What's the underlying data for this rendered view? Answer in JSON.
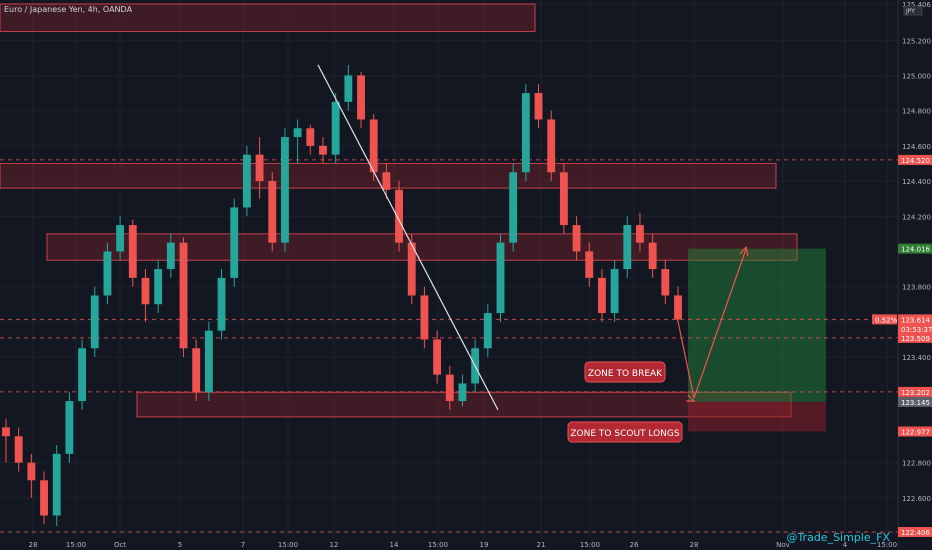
{
  "header": {
    "title": "Euro / Japanese Yen, 4h, OANDA"
  },
  "currency_badge": "JPY",
  "watermark": "@Trade_Simple_FX",
  "colors": {
    "background": "#131722",
    "grid": "#1e222d",
    "bull": "#26a69a",
    "bear": "#ef5350",
    "zone_fill": "rgba(178,40,51,0.28)",
    "zone_border": "#c8404a",
    "long_target": "rgba(38,140,60,0.45)",
    "long_stop": "rgba(150,30,40,0.5)",
    "text": "#b2b5be"
  },
  "chart_data": {
    "type": "candlestick",
    "symbol": "Euro / Japanese Yen",
    "timeframe": "4h",
    "source": "OANDA",
    "ylim": [
      122.406,
      125.406
    ],
    "y_ticks": [
      125.406,
      125.2,
      125.0,
      124.8,
      124.6,
      124.4,
      124.2,
      123.8,
      123.6,
      123.4,
      122.8,
      122.6,
      122.406
    ],
    "x_tick_labels": [
      "28",
      "15:00",
      "Oct",
      "5",
      "7",
      "15:00",
      "12",
      "14",
      "15:00",
      "19",
      "21",
      "15:00",
      "26",
      "28",
      "Nov",
      "4",
      "15:00"
    ],
    "price_labels": [
      {
        "text": "124.520",
        "value": 124.52,
        "color": "#ef5350",
        "line": "dashed"
      },
      {
        "text": "124.016",
        "value": 124.016,
        "color": "#2e7d32",
        "line": "none"
      },
      {
        "text": "123.614",
        "value": 123.614,
        "color": "#ef5350",
        "line": "dashed",
        "extra": "0.52%"
      },
      {
        "text": "03:53:37",
        "value": 123.56,
        "color": "#ef5350",
        "line": "none"
      },
      {
        "text": "123.509",
        "value": 123.509,
        "color": "#ef5350",
        "line": "dashed"
      },
      {
        "text": "123.202",
        "value": 123.202,
        "color": "#ef5350",
        "line": "dashed"
      },
      {
        "text": "123.145",
        "value": 123.145,
        "color": "#5d606b",
        "line": "none"
      },
      {
        "text": "122.977",
        "value": 122.977,
        "color": "#ef5350",
        "line": "none"
      },
      {
        "text": "122.406",
        "value": 122.406,
        "color": "#ef5350",
        "line": "dashed"
      }
    ],
    "zones": [
      {
        "name": "top-zone",
        "from": 125.406,
        "to": 125.25
      },
      {
        "name": "upper-zone",
        "from": 124.5,
        "to": 124.36
      },
      {
        "name": "middle-zone",
        "from": 124.1,
        "to": 123.95
      },
      {
        "name": "lower-zone",
        "from": 123.2,
        "to": 123.06
      }
    ],
    "trendline": {
      "from": [
        125.06
      ],
      "to": [
        123.1
      ]
    },
    "annotations": [
      {
        "name": "zone-to-break",
        "text": "ZONE TO BREAK"
      },
      {
        "name": "zone-to-scout-longs",
        "text": "ZONE TO SCOUT LONGS"
      }
    ],
    "long_position": {
      "entry": 123.145,
      "target": 124.016,
      "stop": 122.977
    },
    "candles": [
      [
        123.0,
        123.05,
        122.8,
        122.95
      ],
      [
        122.95,
        123.0,
        122.75,
        122.8
      ],
      [
        122.8,
        122.85,
        122.6,
        122.7
      ],
      [
        122.7,
        122.75,
        122.45,
        122.5
      ],
      [
        122.5,
        122.9,
        122.44,
        122.85
      ],
      [
        122.85,
        123.2,
        122.8,
        123.15
      ],
      [
        123.15,
        123.5,
        123.1,
        123.45
      ],
      [
        123.45,
        123.8,
        123.4,
        123.75
      ],
      [
        123.75,
        124.05,
        123.7,
        124.0
      ],
      [
        124.0,
        124.2,
        123.95,
        124.15
      ],
      [
        124.15,
        124.18,
        123.8,
        123.85
      ],
      [
        123.85,
        123.9,
        123.6,
        123.7
      ],
      [
        123.7,
        123.95,
        123.65,
        123.9
      ],
      [
        123.9,
        124.1,
        123.85,
        124.05
      ],
      [
        124.05,
        124.08,
        123.4,
        123.45
      ],
      [
        123.45,
        123.5,
        123.15,
        123.2
      ],
      [
        123.2,
        123.6,
        123.15,
        123.55
      ],
      [
        123.55,
        123.9,
        123.5,
        123.85
      ],
      [
        123.85,
        124.3,
        123.8,
        124.25
      ],
      [
        124.25,
        124.6,
        124.2,
        124.55
      ],
      [
        124.55,
        124.65,
        124.3,
        124.4
      ],
      [
        124.4,
        124.45,
        124.0,
        124.05
      ],
      [
        124.05,
        124.7,
        124.0,
        124.65
      ],
      [
        124.65,
        124.75,
        124.5,
        124.7
      ],
      [
        124.7,
        124.72,
        124.55,
        124.6
      ],
      [
        124.6,
        124.65,
        124.5,
        124.55
      ],
      [
        124.55,
        124.9,
        124.5,
        124.85
      ],
      [
        124.85,
        125.06,
        124.8,
        125.0
      ],
      [
        125.0,
        125.02,
        124.7,
        124.75
      ],
      [
        124.75,
        124.78,
        124.4,
        124.45
      ],
      [
        124.45,
        124.5,
        124.3,
        124.35
      ],
      [
        124.35,
        124.4,
        124.0,
        124.05
      ],
      [
        124.05,
        124.1,
        123.7,
        123.75
      ],
      [
        123.75,
        123.8,
        123.45,
        123.5
      ],
      [
        123.5,
        123.55,
        123.25,
        123.3
      ],
      [
        123.3,
        123.35,
        123.1,
        123.15
      ],
      [
        123.15,
        123.3,
        123.12,
        123.25
      ],
      [
        123.25,
        123.5,
        123.2,
        123.45
      ],
      [
        123.45,
        123.7,
        123.4,
        123.65
      ],
      [
        123.65,
        124.1,
        123.6,
        124.05
      ],
      [
        124.05,
        124.5,
        124.0,
        124.45
      ],
      [
        124.45,
        124.95,
        124.4,
        124.9
      ],
      [
        124.9,
        124.95,
        124.7,
        124.75
      ],
      [
        124.75,
        124.8,
        124.4,
        124.45
      ],
      [
        124.45,
        124.5,
        124.1,
        124.15
      ],
      [
        124.15,
        124.2,
        123.95,
        124.0
      ],
      [
        124.0,
        124.05,
        123.8,
        123.85
      ],
      [
        123.85,
        123.9,
        123.6,
        123.65
      ],
      [
        123.65,
        123.95,
        123.6,
        123.9
      ],
      [
        123.9,
        124.2,
        123.85,
        124.15
      ],
      [
        124.15,
        124.22,
        124.0,
        124.05
      ],
      [
        124.05,
        124.1,
        123.85,
        123.9
      ],
      [
        123.9,
        123.95,
        123.7,
        123.75
      ],
      [
        123.75,
        123.8,
        123.6,
        123.614
      ]
    ]
  }
}
